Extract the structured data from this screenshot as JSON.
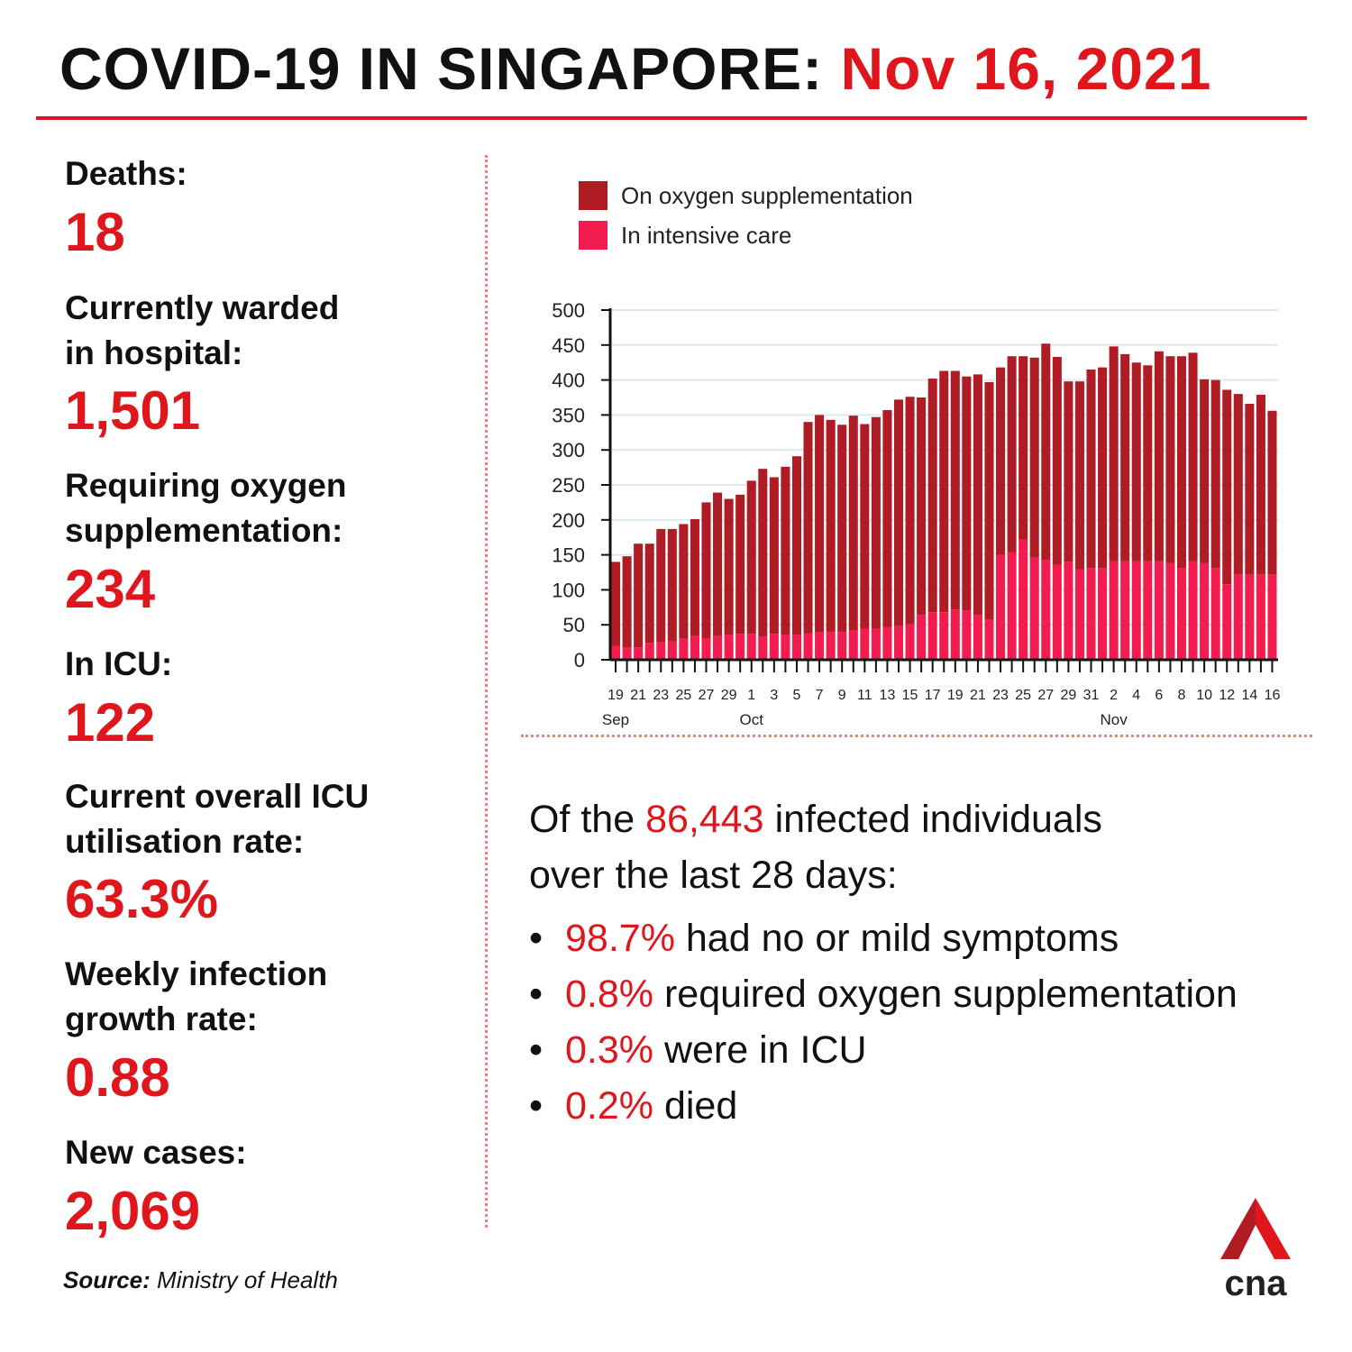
{
  "header": {
    "title_prefix": "COVID-19 IN SINGAPORE:",
    "title_date": "Nov 16, 2021"
  },
  "stats": [
    {
      "label_lines": [
        "Deaths:"
      ],
      "value": "18"
    },
    {
      "label_lines": [
        "Currently warded",
        "in hospital:"
      ],
      "value": "1,501"
    },
    {
      "label_lines": [
        "Requiring oxygen",
        "supplementation:"
      ],
      "value": "234"
    },
    {
      "label_lines": [
        "In ICU:"
      ],
      "value": "122"
    },
    {
      "label_lines": [
        "Current overall ICU",
        "utilisation rate:"
      ],
      "value": "63.3%"
    },
    {
      "label_lines": [
        "Weekly infection",
        "growth rate:"
      ],
      "value": "0.88"
    },
    {
      "label_lines": [
        "New cases:"
      ],
      "value": "2,069"
    }
  ],
  "source": {
    "label": "Source:",
    "text": "Ministry of Health"
  },
  "summary": {
    "pre": "Of the",
    "number": "86,443",
    "post": "infected individuals",
    "line2": "over the last 28 days:"
  },
  "bullets": [
    {
      "pct": "98.7%",
      "text": "had no or mild symptoms"
    },
    {
      "pct": "0.8%",
      "text": "required oxygen supplementation"
    },
    {
      "pct": "0.3%",
      "text": "were in ICU"
    },
    {
      "pct": "0.2%",
      "text": "died"
    }
  ],
  "colors": {
    "accent": "#e0161d",
    "oxygen": "#b01c24",
    "icu": "#f21c4f",
    "grid": "#dce9f2"
  },
  "logo": {
    "text": "cna"
  },
  "chart_data": {
    "type": "bar",
    "stacked": true,
    "legend": [
      "On oxygen supplementation",
      "In intensive care"
    ],
    "legend_placement": "top-left",
    "grid": true,
    "ylim": [
      0,
      500
    ],
    "yticks": [
      0,
      50,
      100,
      150,
      200,
      250,
      300,
      350,
      400,
      450,
      500
    ],
    "x_tick_labels": [
      "19",
      "21",
      "23",
      "25",
      "27",
      "29",
      "1",
      "3",
      "5",
      "7",
      "9",
      "11",
      "13",
      "15",
      "17",
      "19",
      "21",
      "23",
      "25",
      "27",
      "29",
      "31",
      "2",
      "4",
      "6",
      "8",
      "10",
      "12",
      "14",
      "16"
    ],
    "month_labels": [
      {
        "label": "Sep",
        "at_tick": "19"
      },
      {
        "label": "Oct",
        "at_tick": "1"
      },
      {
        "label": "Nov",
        "at_tick": "2"
      }
    ],
    "categories": [
      "Sep 19",
      "Sep 20",
      "Sep 21",
      "Sep 22",
      "Sep 23",
      "Sep 24",
      "Sep 25",
      "Sep 26",
      "Sep 27",
      "Sep 28",
      "Sep 29",
      "Sep 30",
      "Oct 1",
      "Oct 2",
      "Oct 3",
      "Oct 4",
      "Oct 5",
      "Oct 6",
      "Oct 7",
      "Oct 8",
      "Oct 9",
      "Oct 10",
      "Oct 11",
      "Oct 12",
      "Oct 13",
      "Oct 14",
      "Oct 15",
      "Oct 16",
      "Oct 17",
      "Oct 18",
      "Oct 19",
      "Oct 20",
      "Oct 21",
      "Oct 22",
      "Oct 23",
      "Oct 24",
      "Oct 25",
      "Oct 26",
      "Oct 27",
      "Oct 28",
      "Oct 29",
      "Oct 30",
      "Oct 31",
      "Nov 1",
      "Nov 2",
      "Nov 3",
      "Nov 4",
      "Nov 5",
      "Nov 6",
      "Nov 7",
      "Nov 8",
      "Nov 9",
      "Nov 10",
      "Nov 11",
      "Nov 12",
      "Nov 13",
      "Nov 14",
      "Nov 15",
      "Nov 16"
    ],
    "series": [
      {
        "name": "In intensive care",
        "values": [
          20,
          18,
          18,
          24,
          25,
          26,
          30,
          34,
          31,
          34,
          36,
          37,
          37,
          33,
          37,
          36,
          36,
          38,
          39,
          40,
          40,
          42,
          44,
          44,
          47,
          48,
          51,
          64,
          68,
          68,
          72,
          70,
          64,
          58,
          150,
          154,
          172,
          146,
          143,
          136,
          140,
          129,
          131,
          131,
          141,
          141,
          141,
          141,
          141,
          138,
          131,
          141,
          138,
          131,
          108,
          122,
          122,
          122,
          122
        ]
      },
      {
        "name": "On oxygen supplementation",
        "values": [
          120,
          130,
          148,
          142,
          162,
          161,
          164,
          167,
          194,
          205,
          194,
          199,
          219,
          240,
          224,
          240,
          255,
          302,
          311,
          303,
          296,
          307,
          293,
          303,
          310,
          324,
          325,
          311,
          334,
          345,
          341,
          335,
          344,
          339,
          268,
          280,
          262,
          286,
          309,
          297,
          258,
          269,
          284,
          287,
          307,
          296,
          284,
          280,
          300,
          296,
          303,
          298,
          263,
          269,
          278,
          258,
          244,
          257,
          234
        ]
      }
    ]
  }
}
